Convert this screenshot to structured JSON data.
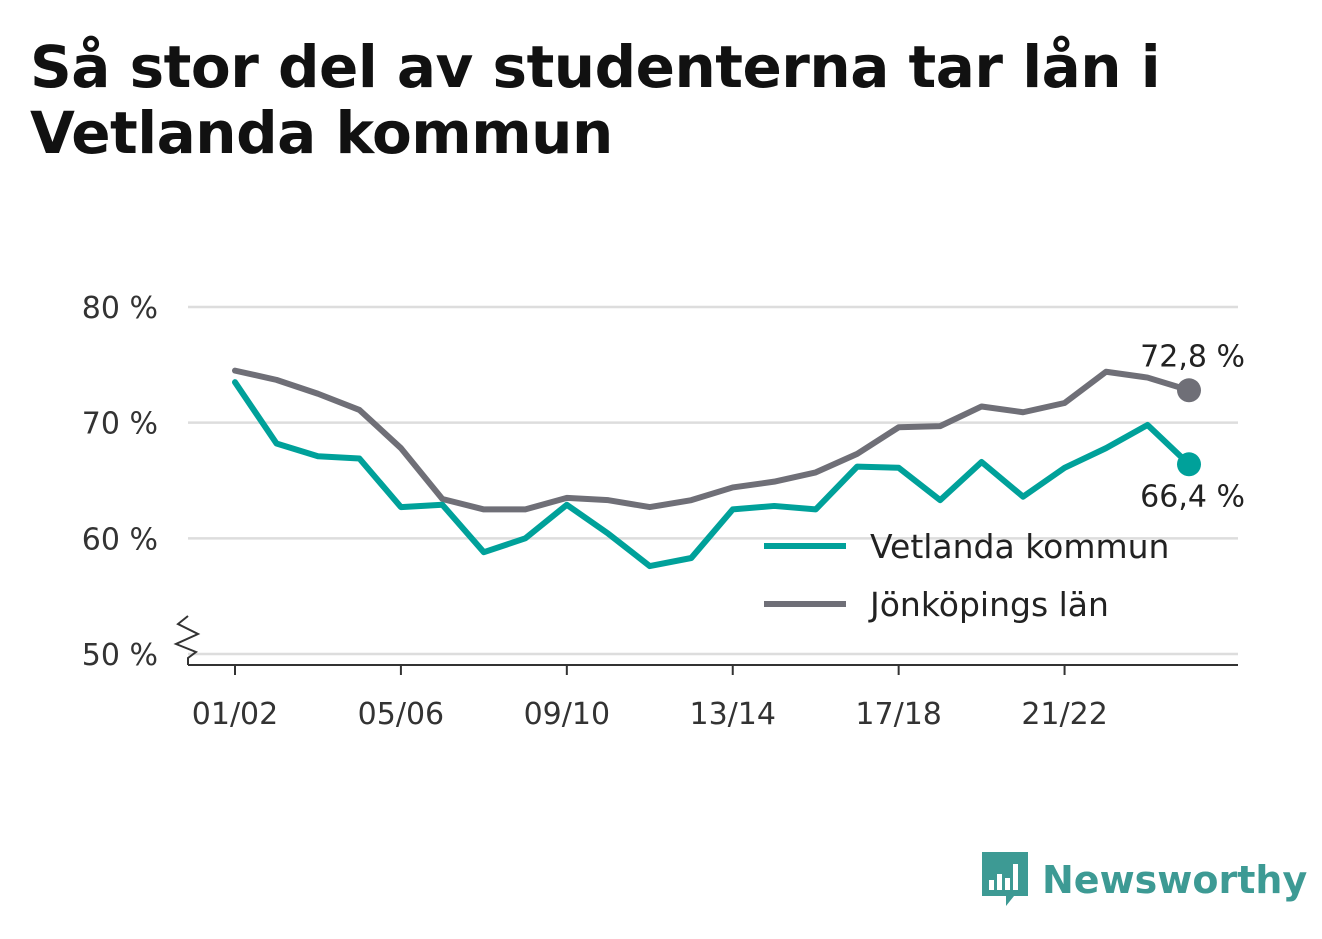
{
  "title": "Så stor del av studenterna tar lån i Vetlanda kommun",
  "brand": {
    "name": "Newsworthy",
    "icon": "newsworthy-logo-icon",
    "color": "#3d9a94"
  },
  "chart_data": {
    "type": "line",
    "title": "Så stor del av studenterna tar lån i Vetlanda kommun",
    "x": [
      "01/02",
      "02/03",
      "03/04",
      "04/05",
      "05/06",
      "06/07",
      "07/08",
      "08/09",
      "09/10",
      "10/11",
      "11/12",
      "12/13",
      "13/14",
      "14/15",
      "15/16",
      "16/17",
      "17/18",
      "18/19",
      "19/20",
      "20/21",
      "21/22",
      "22/23",
      "23/24",
      "24/25"
    ],
    "x_tick_labels": [
      "01/02",
      "05/06",
      "09/10",
      "13/14",
      "17/18",
      "21/22"
    ],
    "y_tick_labels": [
      "80 %",
      "70 %",
      "60 %",
      "50 %"
    ],
    "ylim": [
      50,
      80
    ],
    "y_axis_break": true,
    "grid": true,
    "legend_position": "bottom-right",
    "series": [
      {
        "name": "Vetlanda kommun",
        "color": "#00a19a",
        "values": [
          73.5,
          68.2,
          67.1,
          66.9,
          62.7,
          62.9,
          58.8,
          60.0,
          62.9,
          60.4,
          57.6,
          58.3,
          62.5,
          62.8,
          62.5,
          66.2,
          66.1,
          63.3,
          66.6,
          63.6,
          66.1,
          67.8,
          69.8,
          66.4
        ],
        "end_label": "66,4 %"
      },
      {
        "name": "Jönköpings län",
        "color": "#6f6f77",
        "values": [
          74.5,
          73.7,
          72.5,
          71.1,
          67.8,
          63.4,
          62.5,
          62.5,
          63.5,
          63.3,
          62.7,
          63.3,
          64.4,
          64.9,
          65.7,
          67.3,
          69.6,
          69.7,
          71.4,
          70.9,
          71.7,
          74.4,
          73.9,
          72.8
        ],
        "end_label": "72,8 %"
      }
    ]
  }
}
